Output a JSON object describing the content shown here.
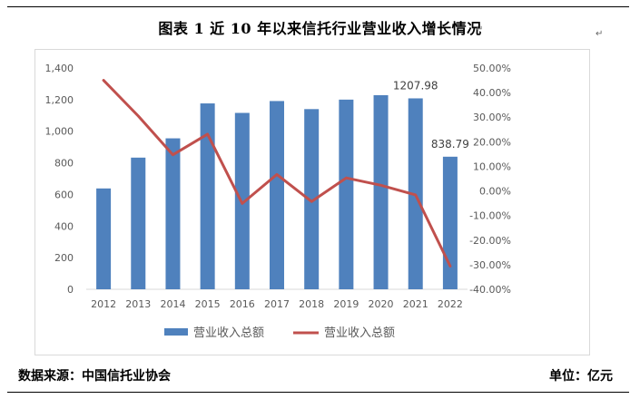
{
  "title": "图表 1  近 10 年以来信托行业营业收入增长情况",
  "footer": {
    "source": "数据来源：中国信托业协会",
    "unit": "单位：亿元"
  },
  "chart_data": {
    "type": "bar",
    "categories": [
      "2012",
      "2013",
      "2014",
      "2015",
      "2016",
      "2017",
      "2018",
      "2019",
      "2020",
      "2021",
      "2022"
    ],
    "series": [
      {
        "name": "营业收入总额",
        "type": "bar",
        "axis": "left",
        "color": "#4f81bd",
        "values": [
          638,
          833,
          955,
          1176,
          1116,
          1191,
          1140,
          1200,
          1228,
          1207.98,
          838.79
        ]
      },
      {
        "name": "营业收入总额",
        "type": "line",
        "axis": "right",
        "color": "#c0504d",
        "values": [
          45.0,
          30.5,
          14.7,
          23.1,
          -5.1,
          6.7,
          -4.3,
          5.3,
          2.3,
          -1.6,
          -30.6
        ]
      }
    ],
    "data_labels": [
      {
        "category": "2021",
        "text": "1207.98"
      },
      {
        "category": "2022",
        "text": "838.79"
      }
    ],
    "left_axis": {
      "ylim": [
        0,
        1400
      ],
      "ticks": [
        0,
        200,
        400,
        600,
        800,
        1000,
        1200,
        1400
      ],
      "tick_labels": [
        "0",
        "200",
        "400",
        "600",
        "800",
        "1,000",
        "1,200",
        "1,400"
      ]
    },
    "right_axis": {
      "ylim": [
        -40,
        50
      ],
      "ticks": [
        -40,
        -30,
        -20,
        -10,
        0,
        10,
        20,
        30,
        40,
        50
      ],
      "tick_labels": [
        "-40.00%",
        "-30.00%",
        "-20.00%",
        "-10.00%",
        "0.00%",
        "10.00%",
        "20.00%",
        "30.00%",
        "40.00%",
        "50.00%"
      ]
    },
    "legend": {
      "position": "bottom",
      "items": [
        {
          "label": "营业收入总额",
          "kind": "bar"
        },
        {
          "label": "营业收入总额",
          "kind": "line"
        }
      ]
    },
    "grid": false
  }
}
